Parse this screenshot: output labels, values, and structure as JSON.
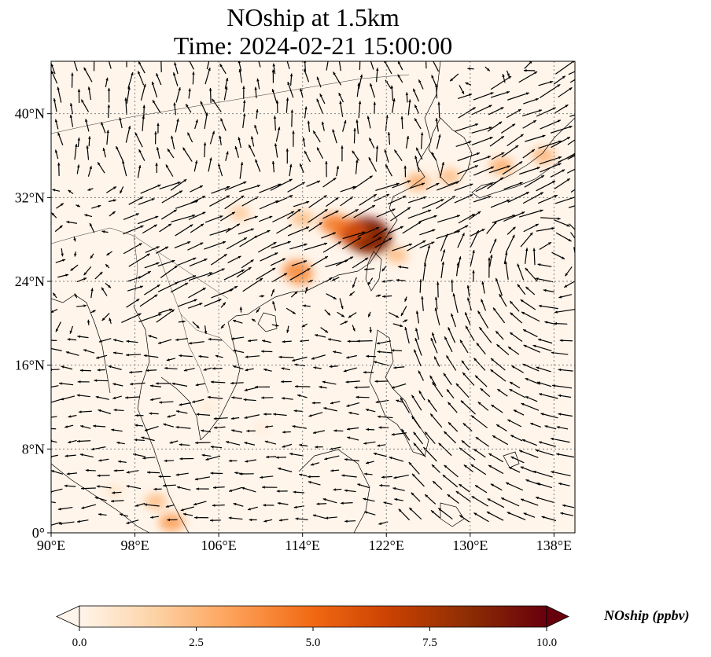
{
  "title": {
    "line1": "NOship at 1.5km",
    "line2": "Time: 2024-02-21 15:00:00"
  },
  "map": {
    "lon_range": [
      90,
      140
    ],
    "lat_range": [
      0,
      45
    ],
    "lon_ticks": [
      {
        "value": 90,
        "label": "90°E"
      },
      {
        "value": 98,
        "label": "98°E"
      },
      {
        "value": 106,
        "label": "106°E"
      },
      {
        "value": 114,
        "label": "114°E"
      },
      {
        "value": 122,
        "label": "122°E"
      },
      {
        "value": 130,
        "label": "130°E"
      },
      {
        "value": 138,
        "label": "138°E"
      }
    ],
    "lat_ticks": [
      {
        "value": 0,
        "label": "0°"
      },
      {
        "value": 8,
        "label": "8°N"
      },
      {
        "value": 16,
        "label": "16°N"
      },
      {
        "value": 24,
        "label": "24°N"
      },
      {
        "value": 32,
        "label": "32°N"
      },
      {
        "value": 40,
        "label": "40°N"
      }
    ],
    "gridlines": true,
    "colors": {
      "background": "#fff5eb",
      "coastline": "#000000",
      "arrow": "#000000",
      "gridline": "#808080"
    },
    "concentration_hotspots": [
      {
        "lon": 120.0,
        "lat": 28.5,
        "value": 10.0
      },
      {
        "lon": 120.5,
        "lat": 28.0,
        "value": 8.5
      },
      {
        "lon": 118.5,
        "lat": 28.8,
        "value": 6.0
      },
      {
        "lon": 117.0,
        "lat": 29.5,
        "value": 4.5
      },
      {
        "lon": 114.0,
        "lat": 30.0,
        "value": 2.5
      },
      {
        "lon": 113.5,
        "lat": 25.0,
        "value": 4.5
      },
      {
        "lon": 113.8,
        "lat": 24.5,
        "value": 3.5
      },
      {
        "lon": 108.0,
        "lat": 30.5,
        "value": 2.0
      },
      {
        "lon": 125.0,
        "lat": 33.5,
        "value": 3.0
      },
      {
        "lon": 128.0,
        "lat": 34.0,
        "value": 2.5
      },
      {
        "lon": 133.0,
        "lat": 35.0,
        "value": 3.0
      },
      {
        "lon": 137.0,
        "lat": 36.0,
        "value": 2.8
      },
      {
        "lon": 123.0,
        "lat": 26.5,
        "value": 2.5
      },
      {
        "lon": 100.0,
        "lat": 3.0,
        "value": 2.5
      },
      {
        "lon": 101.5,
        "lat": 1.0,
        "value": 3.5
      },
      {
        "lon": 96.0,
        "lat": 4.0,
        "value": 1.0
      },
      {
        "lon": 110.0,
        "lat": 10.0,
        "value": 0.5
      },
      {
        "lon": 105.0,
        "lat": 12.0,
        "value": 0.6
      }
    ]
  },
  "colorbar": {
    "label": "NOship (ppbv)",
    "min": 0.0,
    "max": 10.0,
    "ticks": [
      "0.0",
      "2.5",
      "5.0",
      "7.5",
      "10.0"
    ],
    "cmap": [
      "#fff5eb",
      "#fdd1a3",
      "#fd9f56",
      "#f16913",
      "#c94101",
      "#8c2d04",
      "#67000d"
    ]
  }
}
